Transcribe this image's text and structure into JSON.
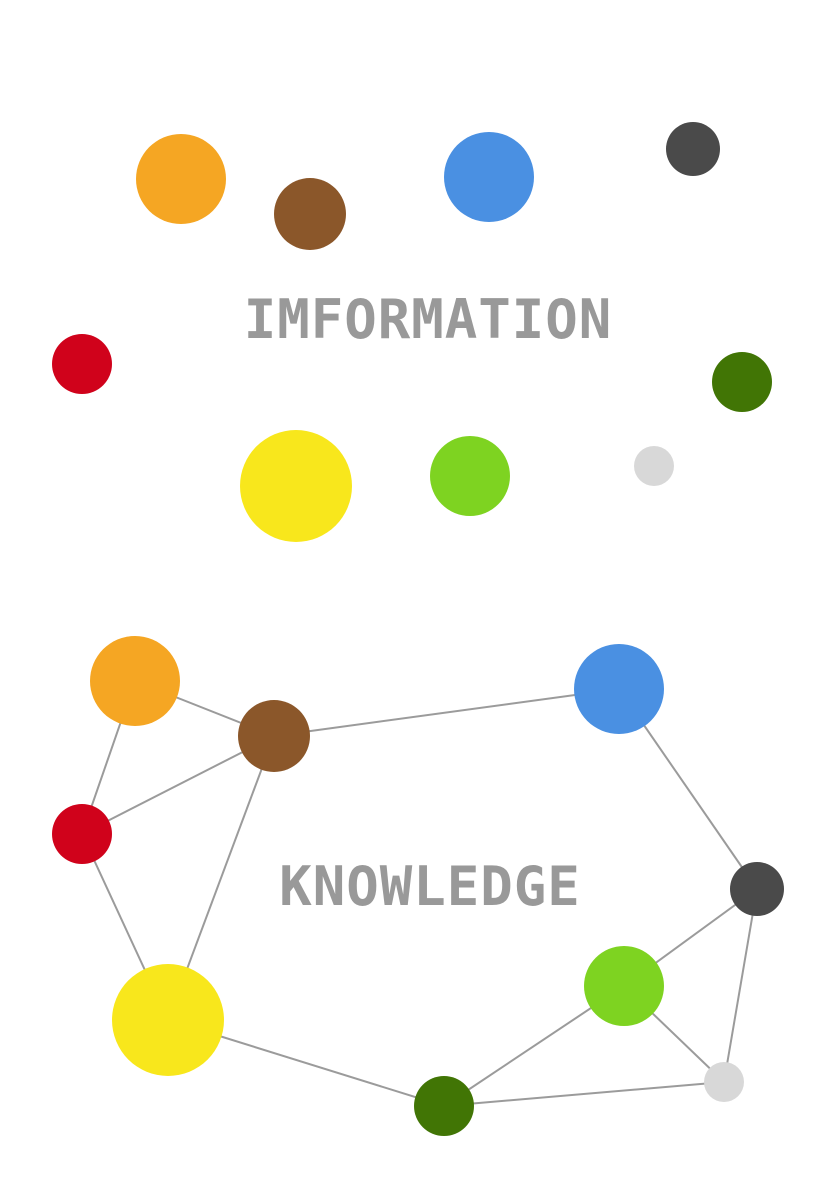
{
  "information": {
    "title": "IMFORMATION",
    "dots": [
      {
        "id": "orange",
        "color": "#f5a623"
      },
      {
        "id": "brown",
        "color": "#8b572a"
      },
      {
        "id": "blue",
        "color": "#4a90e2"
      },
      {
        "id": "dark-gray",
        "color": "#4a4a4a"
      },
      {
        "id": "red",
        "color": "#d0021b"
      },
      {
        "id": "dark-green",
        "color": "#417505"
      },
      {
        "id": "yellow",
        "color": "#f8e71c"
      },
      {
        "id": "lime",
        "color": "#7ed321"
      },
      {
        "id": "light-gray",
        "color": "#d8d8d8"
      }
    ]
  },
  "knowledge": {
    "title": "KNOWLEDGE",
    "nodes": [
      {
        "id": "orange",
        "color": "#f5a623"
      },
      {
        "id": "brown",
        "color": "#8b572a"
      },
      {
        "id": "red",
        "color": "#d0021b"
      },
      {
        "id": "yellow",
        "color": "#f8e71c"
      },
      {
        "id": "blue",
        "color": "#4a90e2"
      },
      {
        "id": "dark-gray",
        "color": "#4a4a4a"
      },
      {
        "id": "lime",
        "color": "#7ed321"
      },
      {
        "id": "light-gray",
        "color": "#d8d8d8"
      },
      {
        "id": "dark-green",
        "color": "#417505"
      }
    ],
    "edges": [
      [
        "orange",
        "brown"
      ],
      [
        "orange",
        "red"
      ],
      [
        "brown",
        "red"
      ],
      [
        "brown",
        "yellow"
      ],
      [
        "brown",
        "blue"
      ],
      [
        "red",
        "yellow"
      ],
      [
        "yellow",
        "dark-green"
      ],
      [
        "blue",
        "dark-gray"
      ],
      [
        "dark-gray",
        "lime"
      ],
      [
        "dark-gray",
        "light-gray"
      ],
      [
        "lime",
        "light-gray"
      ],
      [
        "lime",
        "dark-green"
      ],
      [
        "dark-green",
        "light-gray"
      ]
    ]
  }
}
